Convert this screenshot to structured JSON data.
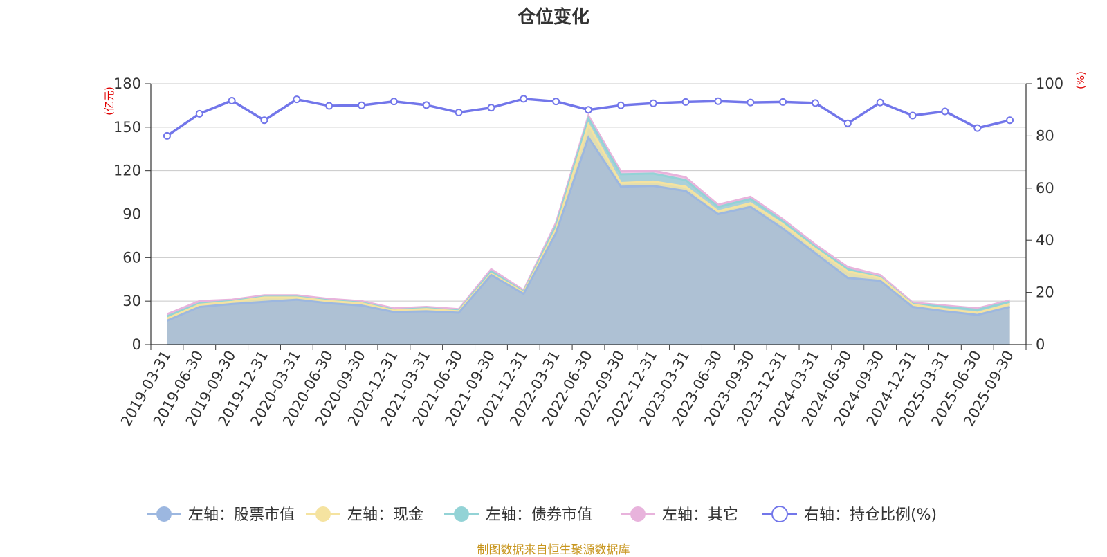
{
  "chart_data": {
    "type": "area",
    "title": "仓位变化",
    "source_note": "制图数据来自恒生聚源数据库",
    "y_left_unit": "(亿元)",
    "y_right_unit": "(%)",
    "y_left_ticks": [
      "0",
      "30",
      "60",
      "90",
      "120",
      "150",
      "180"
    ],
    "y_right_ticks": [
      "0",
      "20",
      "40",
      "60",
      "80",
      "100"
    ],
    "ylim_left": [
      0,
      180
    ],
    "ylim_right": [
      0,
      100
    ],
    "grid": true,
    "legend_position": "bottom",
    "categories": [
      "2019-03-31",
      "2019-06-30",
      "2019-09-30",
      "2019-12-31",
      "2020-03-31",
      "2020-06-30",
      "2020-09-30",
      "2020-12-31",
      "2021-03-31",
      "2021-06-30",
      "2021-09-30",
      "2021-12-31",
      "2022-03-31",
      "2022-06-30",
      "2022-09-30",
      "2022-12-31",
      "2023-03-31",
      "2023-06-30",
      "2023-09-30",
      "2023-12-31",
      "2024-03-31",
      "2024-06-30",
      "2024-09-30",
      "2024-12-31",
      "2025-03-31",
      "2025-06-30",
      "2025-09-30"
    ],
    "stacked_series": [
      {
        "name": "左轴：股票市值",
        "color": "#9cb7e0",
        "values": [
          16.5,
          26,
          28,
          29.5,
          31,
          28.5,
          27,
          22.5,
          23,
          22,
          48,
          35,
          77,
          143,
          109,
          109.5,
          106,
          90,
          95,
          80,
          63,
          46,
          44,
          26,
          23,
          20.5,
          26
        ]
      },
      {
        "name": "左轴：现金",
        "color": "#f5e3a0",
        "values": [
          1.5,
          1.5,
          1.5,
          3,
          1.5,
          1.5,
          1.5,
          1,
          1.5,
          1,
          1,
          1,
          2.5,
          9,
          2.5,
          3,
          3,
          2,
          2.5,
          3,
          3,
          4.5,
          2,
          1.5,
          1.5,
          1.5,
          2
        ]
      },
      {
        "name": "左轴：债券市值",
        "color": "#93d3d6",
        "values": [
          1.5,
          1,
          0.5,
          0.5,
          0.5,
          0.5,
          0.5,
          0.5,
          0.5,
          0.5,
          1.5,
          0.5,
          2.5,
          4,
          6,
          5.5,
          4.5,
          3,
          3,
          2,
          1.5,
          1.5,
          0.5,
          0.5,
          1.5,
          2,
          1.5
        ]
      },
      {
        "name": "左轴：其它",
        "color": "#e8b3dc",
        "values": [
          1.5,
          1.5,
          1,
          1,
          1,
          1,
          1,
          1,
          1,
          1,
          1.5,
          1,
          2,
          2,
          2,
          2,
          2,
          1.5,
          1.5,
          1.5,
          1.5,
          1.5,
          1.5,
          1,
          1,
          1,
          1
        ]
      }
    ],
    "line_series": {
      "name": "右轴：持仓比例(%)",
      "color": "#7276ea",
      "axis": "right",
      "values": [
        80,
        88.5,
        93.5,
        86,
        94,
        91.5,
        91.7,
        93.2,
        91.8,
        89,
        90.8,
        94.2,
        93.2,
        90,
        91.7,
        92.5,
        93,
        93.3,
        92.8,
        93,
        92.6,
        84.8,
        92.8,
        87.8,
        89.4,
        83,
        86
      ]
    }
  }
}
